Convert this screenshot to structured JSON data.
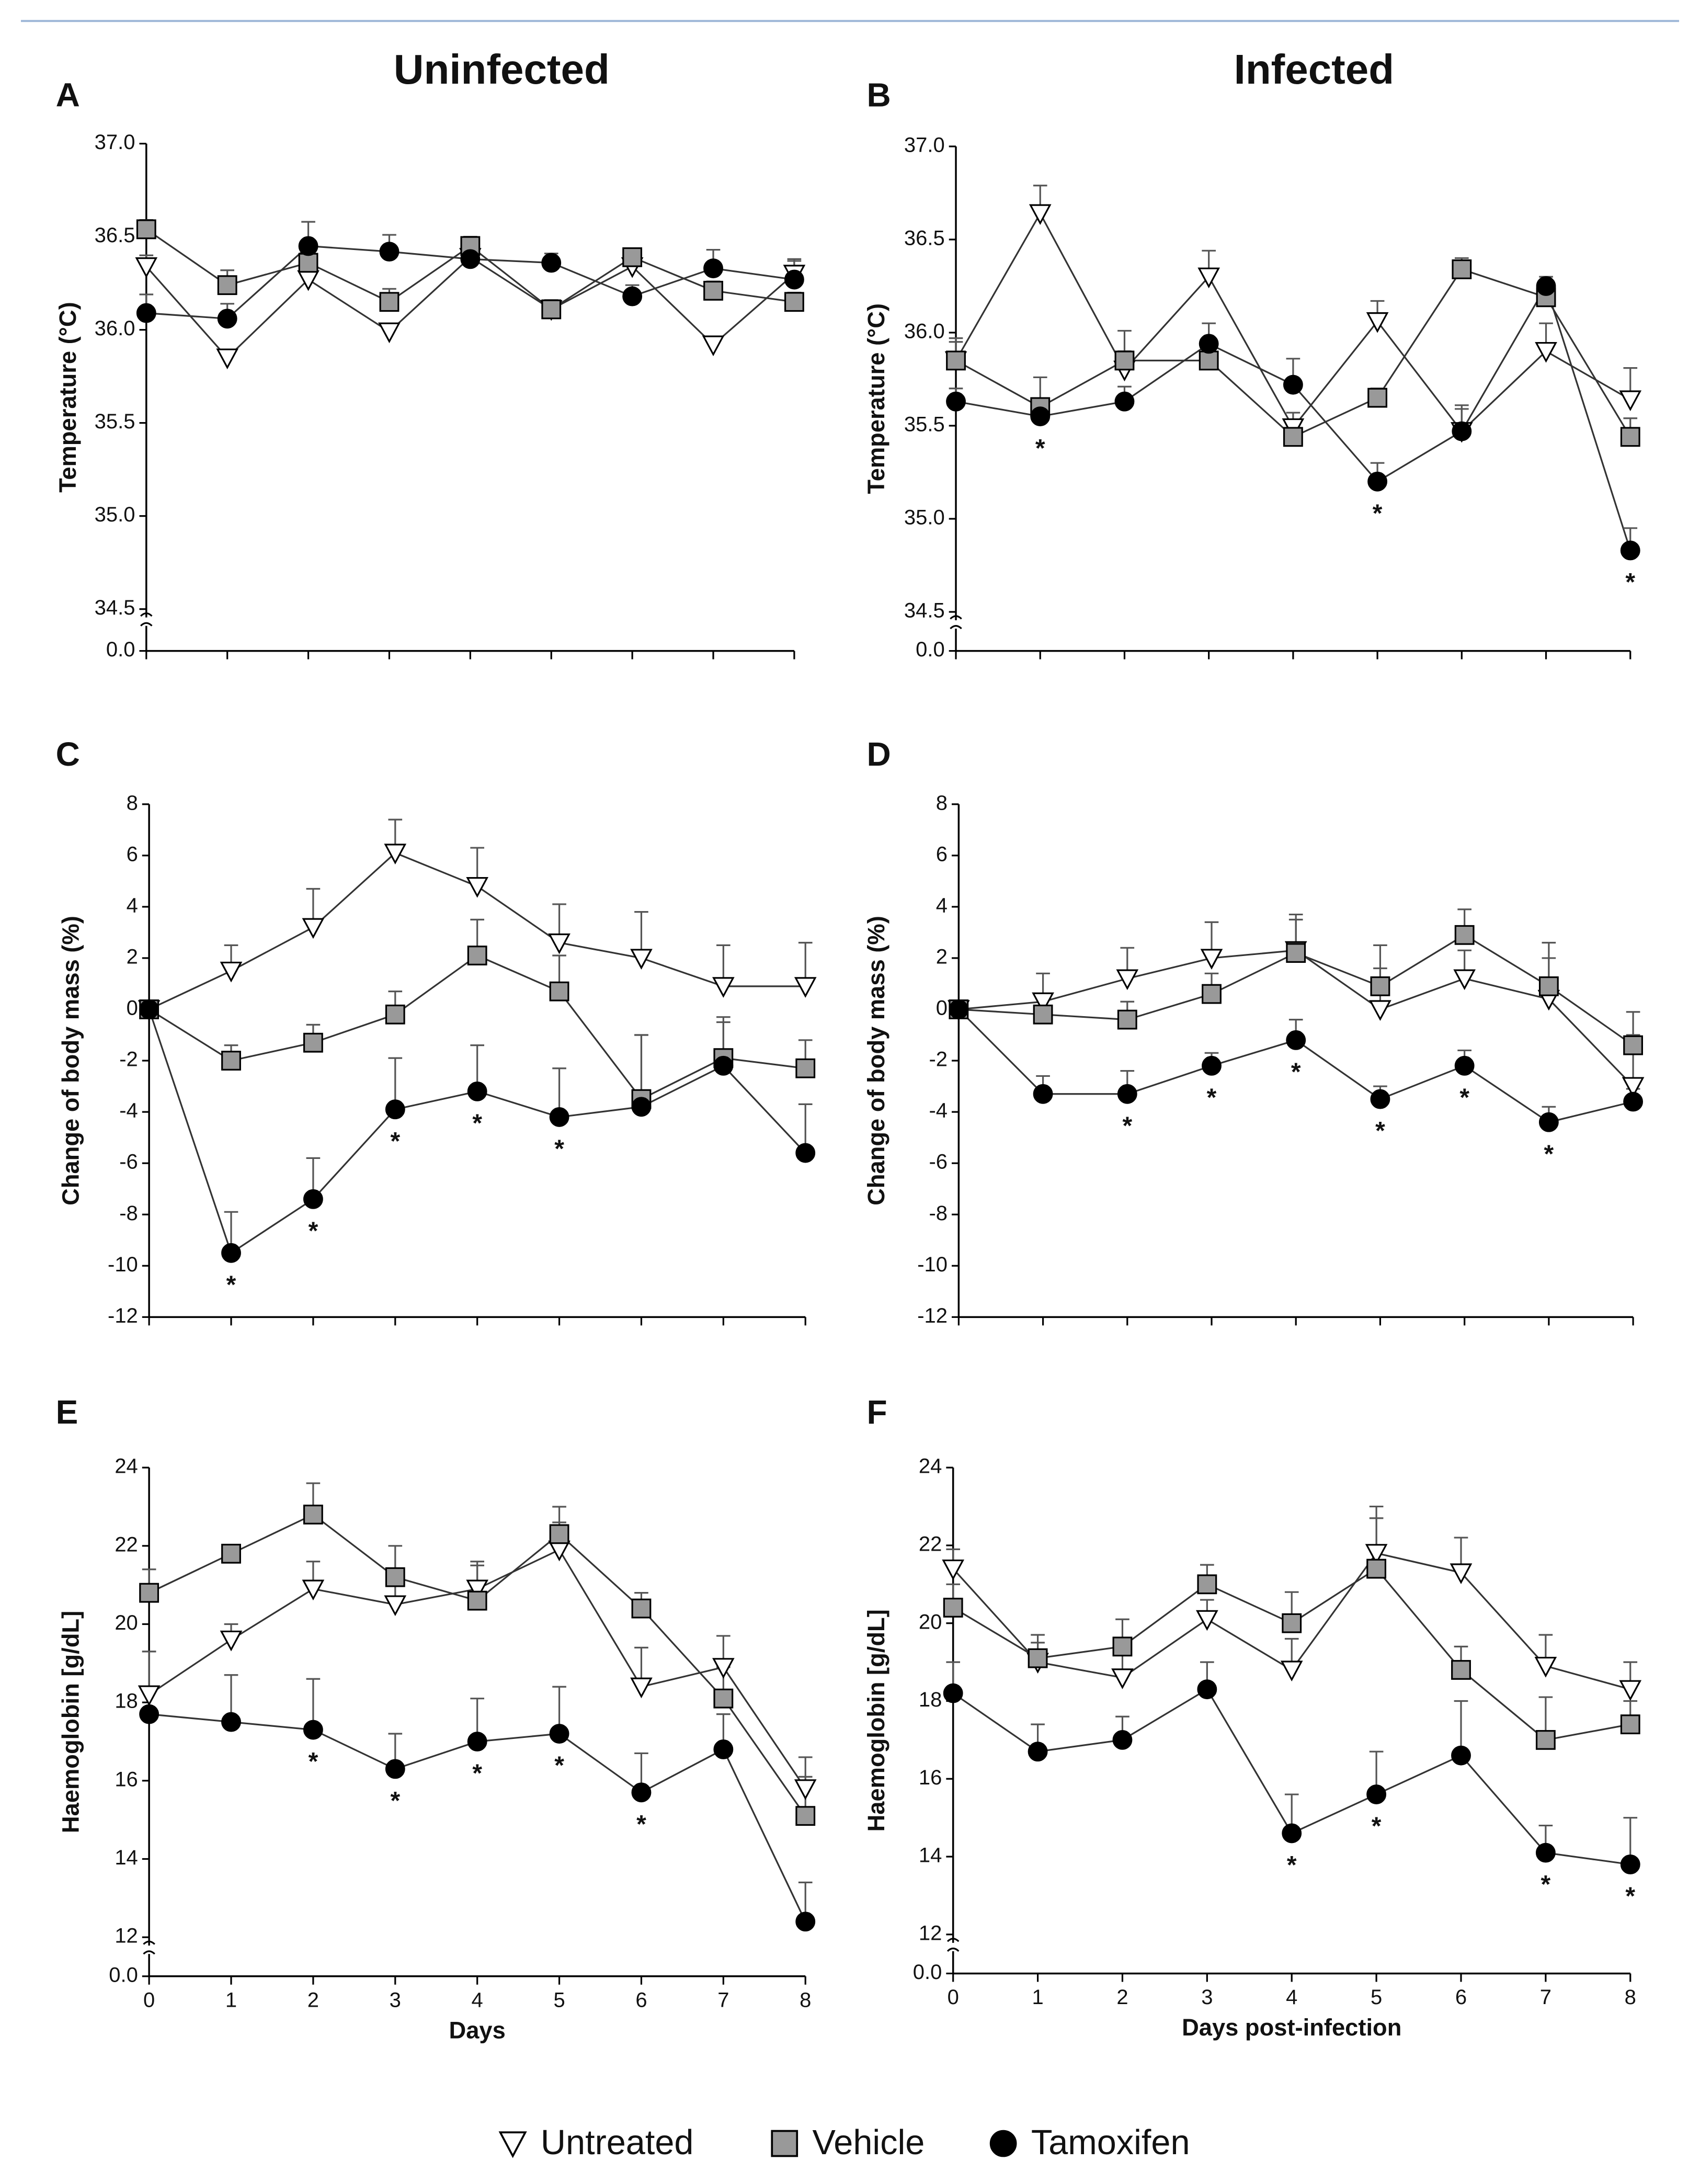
{
  "columns": [
    "Uninfected",
    "Infected"
  ],
  "chart_data": [
    {
      "type": "line",
      "panel": "A",
      "ylabel": "Temperature (°C)",
      "x": [
        0,
        1,
        2,
        3,
        4,
        5,
        6,
        7,
        8
      ],
      "xlim": [
        0,
        8
      ],
      "xticks": [
        0,
        1,
        2,
        3,
        4,
        5,
        6,
        7,
        8
      ],
      "show_xtick_labels": false,
      "ylim": [
        34.5,
        37
      ],
      "yticks": [
        {
          "value": 34.5,
          "label": "34.5"
        },
        {
          "value": 35,
          "label": "35.0"
        },
        {
          "value": 35.5,
          "label": "35.5"
        },
        {
          "value": 36,
          "label": "36.0"
        },
        {
          "value": 36.5,
          "label": "36.5"
        },
        {
          "value": 37,
          "label": "37.0"
        }
      ],
      "yticks_below_break": [
        {
          "value": 0,
          "label": "0.0"
        }
      ],
      "series": [
        {
          "name": "Untreated",
          "marker": "triangle-down",
          "color": "#ffffff",
          "values": [
            36.34,
            35.85,
            36.27,
            35.99,
            36.39,
            36.11,
            36.34,
            35.92,
            36.3
          ],
          "errors": [
            0.06,
            0.03,
            0.06,
            0.04,
            0.05,
            0.04,
            0.05,
            0.03,
            0.08
          ]
        },
        {
          "name": "Vehicle",
          "marker": "square",
          "color": "#999999",
          "values": [
            36.54,
            36.24,
            36.36,
            36.15,
            36.45,
            36.11,
            36.39,
            36.21,
            36.15
          ],
          "errors": [
            0.05,
            0.08,
            0.06,
            0.07,
            0.05,
            0.05,
            0.04,
            0.05,
            0.05
          ]
        },
        {
          "name": "Tamoxifen",
          "marker": "circle",
          "color": "#000000",
          "values": [
            36.09,
            36.06,
            36.45,
            36.42,
            36.38,
            36.36,
            36.18,
            36.33,
            36.27
          ],
          "errors": [
            0.1,
            0.08,
            0.13,
            0.09,
            0.07,
            0.05,
            0.06,
            0.1,
            0.1
          ]
        }
      ],
      "annotations": []
    },
    {
      "type": "line",
      "panel": "B",
      "ylabel": "Temperature (°C)",
      "x": [
        0,
        1,
        2,
        3,
        4,
        5,
        6,
        7,
        8
      ],
      "xlim": [
        0,
        8
      ],
      "xticks": [
        0,
        1,
        2,
        3,
        4,
        5,
        6,
        7,
        8
      ],
      "show_xtick_labels": false,
      "ylim": [
        34.5,
        37
      ],
      "yticks": [
        {
          "value": 34.5,
          "label": "34.5"
        },
        {
          "value": 35,
          "label": "35.0"
        },
        {
          "value": 35.5,
          "label": "35.5"
        },
        {
          "value": 36,
          "label": "36.0"
        },
        {
          "value": 36.5,
          "label": "36.5"
        },
        {
          "value": 37,
          "label": "37.0"
        }
      ],
      "yticks_below_break": [
        {
          "value": 0,
          "label": "0.0"
        }
      ],
      "series": [
        {
          "name": "Untreated",
          "marker": "triangle-down",
          "color": "#ffffff",
          "values": [
            35.85,
            36.64,
            35.8,
            36.3,
            35.49,
            36.06,
            35.47,
            35.9,
            35.64
          ],
          "errors": [
            0.12,
            0.15,
            0.1,
            0.14,
            0.08,
            0.11,
            0.14,
            0.15,
            0.17
          ]
        },
        {
          "name": "Vehicle",
          "marker": "square",
          "color": "#999999",
          "values": [
            35.85,
            35.6,
            35.85,
            35.85,
            35.44,
            35.65,
            36.34,
            36.19,
            35.44
          ],
          "errors": [
            0.1,
            0.16,
            0.16,
            0.12,
            0.06,
            0.05,
            0.06,
            0.05,
            0.1
          ]
        },
        {
          "name": "Tamoxifen",
          "marker": "circle",
          "color": "#000000",
          "values": [
            35.63,
            35.55,
            35.63,
            35.94,
            35.72,
            35.2,
            35.47,
            36.25,
            34.83
          ],
          "errors": [
            0.07,
            0.06,
            0.08,
            0.11,
            0.14,
            0.1,
            0.12,
            0.05,
            0.12
          ]
        }
      ],
      "annotations": [
        {
          "text": "*",
          "x": 1
        },
        {
          "text": "*",
          "x": 5
        },
        {
          "text": "*",
          "x": 8
        }
      ]
    },
    {
      "type": "line",
      "panel": "C",
      "ylabel": "Change of body mass (%)",
      "x": [
        0,
        1,
        2,
        3,
        4,
        5,
        6,
        7,
        8
      ],
      "xlim": [
        0,
        8
      ],
      "xticks": [
        0,
        1,
        2,
        3,
        4,
        5,
        6,
        7,
        8
      ],
      "show_xtick_labels": false,
      "ylim": [
        -12,
        8
      ],
      "yticks": [
        -12,
        -10,
        -8,
        -6,
        -4,
        -2,
        0,
        2,
        4,
        6,
        8
      ],
      "series": [
        {
          "name": "Untreated",
          "marker": "triangle-down",
          "color": "#ffffff",
          "values": [
            0,
            1.5,
            3.2,
            6.1,
            4.8,
            2.6,
            2.0,
            0.9,
            0.9
          ],
          "errors": [
            0.2,
            1.0,
            1.5,
            1.3,
            1.5,
            1.5,
            1.8,
            1.6,
            1.7
          ]
        },
        {
          "name": "Vehicle",
          "marker": "square",
          "color": "#999999",
          "values": [
            0,
            -2.0,
            -1.3,
            -0.2,
            2.1,
            0.7,
            -3.5,
            -1.9,
            -2.3
          ],
          "errors": [
            0.2,
            0.6,
            0.7,
            0.9,
            1.4,
            1.4,
            2.5,
            1.6,
            1.1
          ]
        },
        {
          "name": "Tamoxifen",
          "marker": "circle",
          "color": "#000000",
          "values": [
            0,
            -9.5,
            -7.4,
            -3.9,
            -3.2,
            -4.2,
            -3.8,
            -2.2,
            -5.6
          ],
          "errors": [
            0.2,
            1.6,
            1.6,
            2.0,
            1.8,
            1.9,
            2.8,
            1.7,
            1.9
          ]
        }
      ],
      "annotations": [
        {
          "text": "*",
          "x": 1
        },
        {
          "text": "*",
          "x": 2
        },
        {
          "text": "*",
          "x": 3
        },
        {
          "text": "*",
          "x": 4
        },
        {
          "text": "*",
          "x": 5
        }
      ]
    },
    {
      "type": "line",
      "panel": "D",
      "ylabel": "Change of body mass (%)",
      "x": [
        0,
        1,
        2,
        3,
        4,
        5,
        6,
        7,
        8
      ],
      "xlim": [
        0,
        8
      ],
      "xticks": [
        0,
        1,
        2,
        3,
        4,
        5,
        6,
        7,
        8
      ],
      "show_xtick_labels": false,
      "ylim": [
        -12,
        8
      ],
      "yticks": [
        -12,
        -10,
        -8,
        -6,
        -4,
        -2,
        0,
        2,
        4,
        6,
        8
      ],
      "series": [
        {
          "name": "Untreated",
          "marker": "triangle-down",
          "color": "#ffffff",
          "values": [
            0,
            0.3,
            1.2,
            2.0,
            2.3,
            0.0,
            1.2,
            0.4,
            -3.0
          ],
          "errors": [
            0.2,
            1.1,
            1.2,
            1.4,
            1.2,
            1.6,
            1.1,
            1.6,
            2.0
          ]
        },
        {
          "name": "Vehicle",
          "marker": "square",
          "color": "#999999",
          "values": [
            0,
            -0.2,
            -0.4,
            0.6,
            2.2,
            0.9,
            2.9,
            0.9,
            -1.4
          ],
          "errors": [
            0.2,
            0.8,
            0.7,
            0.8,
            1.5,
            1.6,
            1.0,
            1.7,
            1.3
          ]
        },
        {
          "name": "Tamoxifen",
          "marker": "circle",
          "color": "#000000",
          "values": [
            0,
            -3.3,
            -3.3,
            -2.2,
            -1.2,
            -3.5,
            -2.2,
            -4.4,
            -3.6
          ],
          "errors": [
            0.2,
            0.7,
            0.9,
            0.5,
            0.8,
            0.5,
            0.6,
            0.6,
            0.5
          ]
        }
      ],
      "annotations": [
        {
          "text": "*",
          "x": 2
        },
        {
          "text": "*",
          "x": 3
        },
        {
          "text": "*",
          "x": 4
        },
        {
          "text": "*",
          "x": 5
        },
        {
          "text": "*",
          "x": 6
        },
        {
          "text": "*",
          "x": 7
        }
      ]
    },
    {
      "type": "line",
      "panel": "E",
      "ylabel": "Haemoglobin [g/dL]",
      "xlabel": "Days",
      "x": [
        0,
        1,
        2,
        3,
        4,
        5,
        6,
        7,
        8
      ],
      "xlim": [
        0,
        8
      ],
      "xticks": [
        0,
        1,
        2,
        3,
        4,
        5,
        6,
        7,
        8
      ],
      "show_xtick_labels": true,
      "ylim": [
        12,
        24
      ],
      "yticks": [
        12,
        14,
        16,
        18,
        20,
        22,
        24
      ],
      "yticks_below_break": [
        {
          "value": 0,
          "label": "0.0"
        }
      ],
      "series": [
        {
          "name": "Untreated",
          "marker": "triangle-down",
          "color": "#ffffff",
          "values": [
            18.2,
            19.6,
            20.9,
            20.5,
            20.9,
            21.9,
            18.4,
            18.9,
            15.8
          ],
          "errors": [
            1.1,
            0.4,
            0.7,
            0.7,
            0.7,
            0.7,
            1.0,
            0.8,
            0.8
          ]
        },
        {
          "name": "Vehicle",
          "marker": "square",
          "color": "#999999",
          "values": [
            20.8,
            21.8,
            22.8,
            21.2,
            20.6,
            22.3,
            20.4,
            18.1,
            15.1
          ],
          "errors": [
            0.6,
            0.2,
            0.8,
            0.8,
            0.9,
            0.7,
            0.4,
            0.8,
            1.0
          ]
        },
        {
          "name": "Tamoxifen",
          "marker": "circle",
          "color": "#000000",
          "values": [
            17.7,
            17.5,
            17.3,
            16.3,
            17.0,
            17.2,
            15.7,
            16.8,
            12.4
          ],
          "errors": [
            1.6,
            1.2,
            1.3,
            0.9,
            1.1,
            1.2,
            1.0,
            0.9,
            1.0
          ]
        }
      ],
      "annotations": [
        {
          "text": "*",
          "x": 2
        },
        {
          "text": "*",
          "x": 3
        },
        {
          "text": "*",
          "x": 4
        },
        {
          "text": "*",
          "x": 5
        },
        {
          "text": "*",
          "x": 6
        }
      ]
    },
    {
      "type": "line",
      "panel": "F",
      "ylabel": "Haemoglobin [g/dL]",
      "xlabel": "Days post-infection",
      "x": [
        0,
        1,
        2,
        3,
        4,
        5,
        6,
        7,
        8
      ],
      "xlim": [
        0,
        8
      ],
      "xticks": [
        0,
        1,
        2,
        3,
        4,
        5,
        6,
        7,
        8
      ],
      "show_xtick_labels": true,
      "ylim": [
        12,
        24
      ],
      "yticks": [
        12,
        14,
        16,
        18,
        20,
        22,
        24
      ],
      "yticks_below_break": [
        {
          "value": 0,
          "label": "0.0"
        }
      ],
      "series": [
        {
          "name": "Untreated",
          "marker": "triangle-down",
          "color": "#ffffff",
          "values": [
            21.4,
            19.0,
            18.6,
            20.1,
            18.8,
            21.8,
            21.3,
            18.9,
            18.3
          ],
          "errors": [
            0.5,
            0.5,
            0.6,
            0.5,
            0.8,
            1.2,
            0.9,
            0.8,
            0.7
          ]
        },
        {
          "name": "Vehicle",
          "marker": "square",
          "color": "#999999",
          "values": [
            20.4,
            19.1,
            19.4,
            21.0,
            20.0,
            21.4,
            18.8,
            17.0,
            17.4
          ],
          "errors": [
            0.6,
            0.6,
            0.7,
            0.5,
            0.8,
            1.3,
            0.6,
            1.1,
            0.6
          ]
        },
        {
          "name": "Tamoxifen",
          "marker": "circle",
          "color": "#000000",
          "values": [
            18.2,
            16.7,
            17.0,
            18.3,
            14.6,
            15.6,
            16.6,
            14.1,
            13.8
          ],
          "errors": [
            0.8,
            0.7,
            0.6,
            0.7,
            1.0,
            1.1,
            1.4,
            0.7,
            1.2
          ]
        }
      ],
      "annotations": [
        {
          "text": "*",
          "x": 4
        },
        {
          "text": "*",
          "x": 5
        },
        {
          "text": "*",
          "x": 7
        },
        {
          "text": "*",
          "x": 8
        }
      ]
    }
  ]
}
